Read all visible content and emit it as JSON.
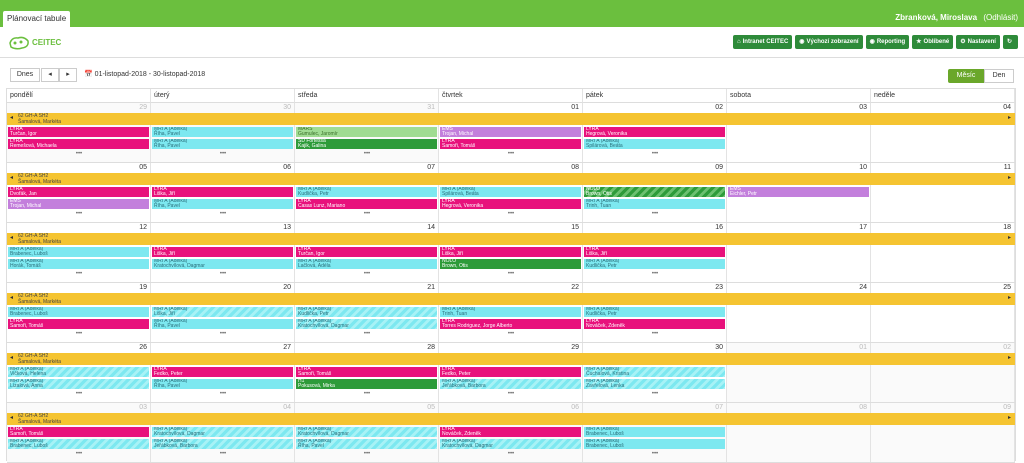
{
  "app_tab": "Plánovací tabule",
  "user": {
    "name": "Zbranková, Miroslava",
    "logout": "(Odhlásit)"
  },
  "logo_text": "CEITEC",
  "menu": [
    {
      "label": "Intranet CEITEC",
      "icon": "home-icon"
    },
    {
      "label": "Výchozí zobrazení",
      "icon": "eye-icon"
    },
    {
      "label": "Reporting",
      "icon": "eye-icon"
    },
    {
      "label": "Oblíbené",
      "icon": "star-icon"
    },
    {
      "label": "Nastavení",
      "icon": "gear-icon"
    },
    {
      "label": "",
      "icon": "refresh-icon"
    }
  ],
  "toolbar": {
    "today": "Dnes",
    "prev": "◂",
    "next": "▸",
    "range": "01-listopad-2018 - 30-listopad-2018",
    "month": "Měsíc",
    "day": "Den"
  },
  "colors": {
    "pink": "#e8127c",
    "cyan": "#7de8f0",
    "purple": "#c37fdc",
    "green": "#2e9b3a",
    "band": "#f5c431",
    "topbar": "#6bbf3e"
  },
  "days": [
    "pondělí",
    "úterý",
    "středa",
    "čtvrtek",
    "pátek",
    "sobota",
    "neděle"
  ],
  "band": {
    "line1": "62 GH-A SH2",
    "line2": "Šamalová, Markéta"
  },
  "weeks": [
    {
      "dates": [
        {
          "n": "29",
          "dim": true
        },
        {
          "n": "30",
          "dim": true
        },
        {
          "n": "31",
          "dim": true
        },
        {
          "n": "01"
        },
        {
          "n": "02"
        },
        {
          "n": "03"
        },
        {
          "n": "04"
        }
      ],
      "events": [
        {
          "day": 0,
          "row": 0,
          "c": "pink",
          "t1": "LYRA",
          "t2": "Turčan, Igor"
        },
        {
          "day": 0,
          "row": 1,
          "c": "pink",
          "t1": "LYRA",
          "t2": "Remešová, Michaela"
        },
        {
          "day": 1,
          "row": 0,
          "c": "cyan",
          "t1": "MRI A (Adélka)",
          "t2": "Říha, Pavel"
        },
        {
          "day": 1,
          "row": 1,
          "c": "cyan",
          "t1": "MRI A (Adélka)",
          "t2": "Říha, Pavel"
        },
        {
          "day": 2,
          "row": 0,
          "c": "lime",
          "t1": "MARS",
          "t2": "Gumulec, Jaromír"
        },
        {
          "day": 2,
          "row": 1,
          "c": "green",
          "t1": "SD Fortessa",
          "t2": "Kajik, Galina"
        },
        {
          "day": 3,
          "row": 0,
          "c": "purple",
          "t1": "EMS",
          "t2": "Trojan, Michal"
        },
        {
          "day": 3,
          "row": 1,
          "c": "pink",
          "t1": "LYRA",
          "t2": "Samoři, Tomáš"
        },
        {
          "day": 4,
          "row": 0,
          "c": "pink",
          "t1": "LYRA",
          "t2": "Hegrová, Veronika"
        },
        {
          "day": 4,
          "row": 1,
          "c": "cyan",
          "t1": "MRI A (Adélka)",
          "t2": "Spilárová, Beáta"
        }
      ],
      "more": [
        0,
        1,
        2,
        3,
        4
      ]
    },
    {
      "dates": [
        {
          "n": "05"
        },
        {
          "n": "06"
        },
        {
          "n": "07"
        },
        {
          "n": "08"
        },
        {
          "n": "09"
        },
        {
          "n": "10"
        },
        {
          "n": "11"
        }
      ],
      "events": [
        {
          "day": 0,
          "row": 0,
          "c": "pink",
          "t1": "LYRA",
          "t2": "Dvořák, Jan"
        },
        {
          "day": 0,
          "row": 1,
          "c": "purple",
          "t1": "EMS",
          "t2": "Trojan, Michal"
        },
        {
          "day": 1,
          "row": 0,
          "c": "pink",
          "t1": "LYRA",
          "t2": "Liška, Jiří"
        },
        {
          "day": 1,
          "row": 1,
          "c": "cyan",
          "t1": "MRI A (Adélka)",
          "t2": "Říha, Pavel"
        },
        {
          "day": 2,
          "row": 0,
          "c": "cyan",
          "t1": "MRI A (Adélka)",
          "t2": "Kudlička, Petr"
        },
        {
          "day": 2,
          "row": 1,
          "c": "pink",
          "t1": "LYRA",
          "t2": "Casas Lunz, Mariano"
        },
        {
          "day": 3,
          "row": 0,
          "c": "cyan",
          "t1": "MRI A (Adélka)",
          "t2": "Spilárová, Beáta"
        },
        {
          "day": 3,
          "row": 1,
          "c": "pink",
          "t1": "LYRA",
          "t2": "Hegrová, Veronika"
        },
        {
          "day": 4,
          "row": 0,
          "c": "greenh",
          "t1": "NOLO",
          "t2": "Brown, Otis"
        },
        {
          "day": 4,
          "row": 1,
          "c": "cyan",
          "t1": "MRI A (Adélka)",
          "t2": "Trinh, Tuan"
        },
        {
          "day": 5,
          "row": 0,
          "c": "purple",
          "t1": "EMS",
          "t2": "Eichler, Petr"
        }
      ],
      "more": [
        0,
        1,
        2,
        3,
        4
      ]
    },
    {
      "dates": [
        {
          "n": "12"
        },
        {
          "n": "13"
        },
        {
          "n": "14"
        },
        {
          "n": "15"
        },
        {
          "n": "16"
        },
        {
          "n": "17"
        },
        {
          "n": "18"
        }
      ],
      "events": [
        {
          "day": 0,
          "row": 0,
          "c": "cyan",
          "t1": "MRI A (Adélka)",
          "t2": "Brabenec, Luboš"
        },
        {
          "day": 0,
          "row": 1,
          "c": "cyan",
          "t1": "MRI A (Adélka)",
          "t2": "Horák, Tomáš"
        },
        {
          "day": 1,
          "row": 0,
          "c": "pink",
          "t1": "LYRA",
          "t2": "Liška, Jiří"
        },
        {
          "day": 1,
          "row": 1,
          "c": "cyan",
          "t1": "MRI A (Adélka)",
          "t2": "Kratochvílová, Dagmar"
        },
        {
          "day": 2,
          "row": 0,
          "c": "pink",
          "t1": "LYRA",
          "t2": "Turčan, Igor"
        },
        {
          "day": 2,
          "row": 1,
          "c": "cyan",
          "t1": "MRI A (Adélka)",
          "t2": "Lačlová, Adéla"
        },
        {
          "day": 3,
          "row": 0,
          "c": "pink",
          "t1": "LYRA",
          "t2": "Liška, Jiří"
        },
        {
          "day": 3,
          "row": 1,
          "c": "green",
          "t1": "NOLO",
          "t2": "Brown, Otis"
        },
        {
          "day": 4,
          "row": 0,
          "c": "pink",
          "t1": "LYRA",
          "t2": "Liška, Jiří"
        },
        {
          "day": 4,
          "row": 1,
          "c": "cyan",
          "t1": "MRI A (Adélka)",
          "t2": "Kudlička, Petr"
        }
      ],
      "more": [
        0,
        1,
        2,
        3,
        4
      ]
    },
    {
      "dates": [
        {
          "n": "19"
        },
        {
          "n": "20"
        },
        {
          "n": "21"
        },
        {
          "n": "22"
        },
        {
          "n": "23"
        },
        {
          "n": "24"
        },
        {
          "n": "25"
        }
      ],
      "events": [
        {
          "day": 0,
          "row": 0,
          "c": "cyan",
          "t1": "MRI A (Adélka)",
          "t2": "Brabenec, Luboš"
        },
        {
          "day": 0,
          "row": 1,
          "c": "pink",
          "t1": "LYRA",
          "t2": "Samoři, Tomáš"
        },
        {
          "day": 1,
          "row": 0,
          "c": "cyanh",
          "t1": "MRI A (Adélka)",
          "t2": "Liška, Jiří"
        },
        {
          "day": 1,
          "row": 1,
          "c": "cyan",
          "t1": "MRI A (Adélka)",
          "t2": "Říha, Pavel"
        },
        {
          "day": 2,
          "row": 0,
          "c": "cyanh",
          "t1": "MRI A (Adélka)",
          "t2": "Kudlička, Petr"
        },
        {
          "day": 2,
          "row": 1,
          "c": "cyanh",
          "t1": "MRI A (Adélka)",
          "t2": "Kratochvílová, Dagmar"
        },
        {
          "day": 3,
          "row": 0,
          "c": "cyan",
          "t1": "MRI A (Adélka)",
          "t2": "Trinh, Tuan"
        },
        {
          "day": 3,
          "row": 1,
          "c": "pink",
          "t1": "LYRA",
          "t2": "Torres Rodriguez, Jorge Alberto"
        },
        {
          "day": 4,
          "row": 0,
          "c": "cyan",
          "t1": "MRI A (Adélka)",
          "t2": "Kudlička, Petr"
        },
        {
          "day": 4,
          "row": 1,
          "c": "pink",
          "t1": "LYRA",
          "t2": "Nováček, Zdeněk"
        }
      ],
      "more": [
        0,
        1,
        2,
        3,
        4
      ]
    },
    {
      "dates": [
        {
          "n": "26"
        },
        {
          "n": "27"
        },
        {
          "n": "28"
        },
        {
          "n": "29"
        },
        {
          "n": "30"
        },
        {
          "n": "01",
          "dim": true
        },
        {
          "n": "02",
          "dim": true
        }
      ],
      "events": [
        {
          "day": 0,
          "row": 0,
          "c": "cyanh",
          "t1": "MRI A (Adélka)",
          "t2": "Vičková, Helena"
        },
        {
          "day": 0,
          "row": 1,
          "c": "cyanh",
          "t1": "MRI A (Adélka)",
          "t2": "Lízalová, Anna"
        },
        {
          "day": 1,
          "row": 0,
          "c": "pink",
          "t1": "LYRA",
          "t2": "Fedko, Peter"
        },
        {
          "day": 1,
          "row": 1,
          "c": "cyan",
          "t1": "MRI A (Adélka)",
          "t2": "Říha, Pavel"
        },
        {
          "day": 2,
          "row": 0,
          "c": "pink",
          "t1": "LYRA",
          "t2": "Samoři, Tomáš"
        },
        {
          "day": 2,
          "row": 1,
          "c": "green",
          "t1": "H1",
          "t2": "Pokusová, Mirka"
        },
        {
          "day": 3,
          "row": 0,
          "c": "pink",
          "t1": "LYRA",
          "t2": "Fedko, Peter"
        },
        {
          "day": 3,
          "row": 1,
          "c": "cyanh",
          "t1": "MRI A (Adélka)",
          "t2": "Jeřábková, Barbora"
        },
        {
          "day": 4,
          "row": 0,
          "c": "cyanh",
          "t1": "MRI A (Adélka)",
          "t2": "Čuchalová, Kristina"
        },
        {
          "day": 4,
          "row": 1,
          "c": "cyanh",
          "t1": "MRI A (Adélka)",
          "t2": "Zavřelová, Lenka"
        }
      ],
      "more": [
        0,
        1,
        2,
        3,
        4
      ]
    },
    {
      "dates": [
        {
          "n": "03",
          "dim": true
        },
        {
          "n": "04",
          "dim": true
        },
        {
          "n": "05",
          "dim": true
        },
        {
          "n": "06",
          "dim": true
        },
        {
          "n": "07",
          "dim": true
        },
        {
          "n": "08",
          "dim": true
        },
        {
          "n": "09",
          "dim": true
        }
      ],
      "events": [
        {
          "day": 0,
          "row": 0,
          "c": "pink",
          "t1": "LYRA",
          "t2": "Samoři, Tomáš"
        },
        {
          "day": 0,
          "row": 1,
          "c": "cyanh",
          "t1": "MRI A (Adélka)",
          "t2": "Brabenec, Luboš"
        },
        {
          "day": 1,
          "row": 0,
          "c": "cyanh",
          "t1": "MRI A (Adélka)",
          "t2": "Kratochvílová, Dagmar"
        },
        {
          "day": 1,
          "row": 1,
          "c": "cyanh",
          "t1": "MRI A (Adélka)",
          "t2": "Jeřábková, Barbora"
        },
        {
          "day": 2,
          "row": 0,
          "c": "cyanh",
          "t1": "MRI A (Adélka)",
          "t2": "Kratochvílová, Dagmar"
        },
        {
          "day": 2,
          "row": 1,
          "c": "cyanh",
          "t1": "MRI A (Adélka)",
          "t2": "Říha, Pavel"
        },
        {
          "day": 3,
          "row": 0,
          "c": "pink",
          "t1": "LYRA",
          "t2": "Nováček, Zdeněk"
        },
        {
          "day": 3,
          "row": 1,
          "c": "cyanh",
          "t1": "MRI A (Adélka)",
          "t2": "Kratochvílová, Dagmar"
        },
        {
          "day": 4,
          "row": 0,
          "c": "cyan",
          "t1": "MRI A (Adélka)",
          "t2": "Brabenec, Luboš"
        },
        {
          "day": 4,
          "row": 1,
          "c": "cyan",
          "t1": "MRI A (Adélka)",
          "t2": "Brabenec, Luboš"
        }
      ],
      "more": [
        0,
        1,
        2,
        3,
        4
      ]
    }
  ]
}
